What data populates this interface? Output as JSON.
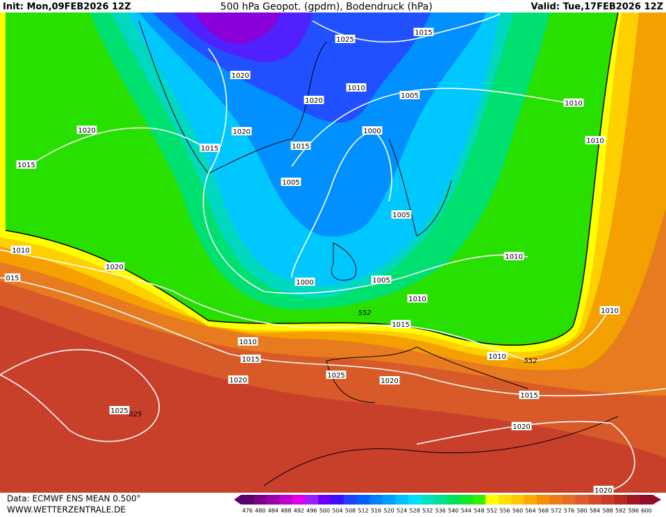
{
  "header": {
    "init": "Init: Mon,09FEB2026 12Z",
    "title": "500 hPa Geopot. (gpdm), Bodendruck (hPa)",
    "valid": "Valid: Tue,17FEB2026 12Z"
  },
  "map": {
    "isobar_labels": [
      "1015",
      "1025",
      "1020",
      "1010",
      "1020",
      "1005",
      "1010",
      "1020",
      "1020",
      "1000",
      "1010",
      "1015",
      "1015",
      "1015",
      "1005",
      "1005",
      "1010",
      "1020",
      "1010",
      "015",
      "1000",
      "1005",
      "1010",
      "552",
      "1010",
      "1015",
      "1010",
      "1015",
      "1010",
      "552",
      "1025",
      "1020",
      "1020",
      "1015",
      "1025",
      "025",
      "1020",
      "1020"
    ]
  },
  "footer": {
    "data": "Data: ECMWF ENS MEAN 0.500°",
    "site": "WWW.WETTERZENTRALE.DE"
  },
  "scale": {
    "labels": [
      476,
      480,
      484,
      488,
      492,
      496,
      500,
      504,
      508,
      512,
      516,
      520,
      524,
      528,
      532,
      536,
      540,
      544,
      548,
      552,
      556,
      560,
      564,
      568,
      572,
      576,
      580,
      584,
      588,
      592,
      596,
      600
    ],
    "colors": [
      "#5a0070",
      "#7a008a",
      "#9a00a8",
      "#c000c8",
      "#e000e8",
      "#9a20ff",
      "#6a00ff",
      "#3c10ff",
      "#2040ff",
      "#0060ff",
      "#0080ff",
      "#00a0ff",
      "#00c0ff",
      "#00e0ff",
      "#00e0c0",
      "#00e090",
      "#00e060",
      "#10e830",
      "#30f000",
      "#ffff00",
      "#ffe000",
      "#ffc800",
      "#ffa800",
      "#f49000",
      "#ec7c18",
      "#e46c24",
      "#dc5c2c",
      "#d44c2c",
      "#c83c28",
      "#b82a22",
      "#a01820",
      "#900c28"
    ]
  }
}
